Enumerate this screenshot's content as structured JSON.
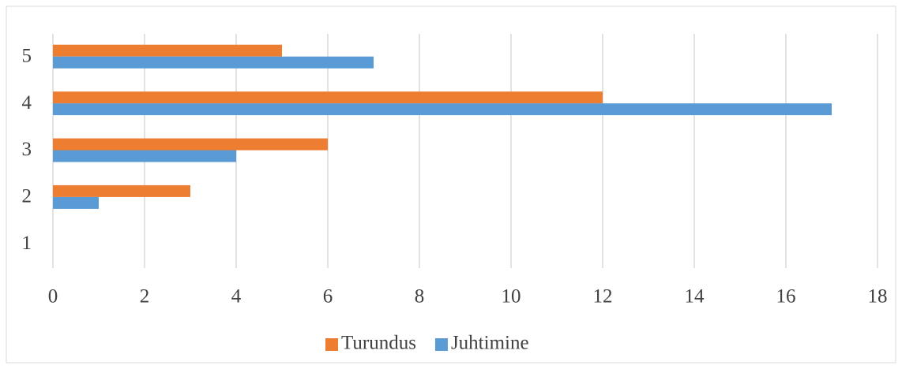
{
  "chart_data": {
    "type": "hbar",
    "categories": [
      "1",
      "2",
      "3",
      "4",
      "5"
    ],
    "series": [
      {
        "name": "Turundus",
        "color": "#ed7d31",
        "values": [
          0,
          3,
          6,
          12,
          5
        ]
      },
      {
        "name": "Juhtimine",
        "color": "#5b9bd5",
        "values": [
          0,
          1,
          4,
          17,
          7
        ]
      }
    ],
    "xlim": [
      0,
      18
    ],
    "xticks": [
      0,
      2,
      4,
      6,
      8,
      10,
      12,
      14,
      16,
      18
    ],
    "grid": true,
    "legend": "bottom"
  }
}
